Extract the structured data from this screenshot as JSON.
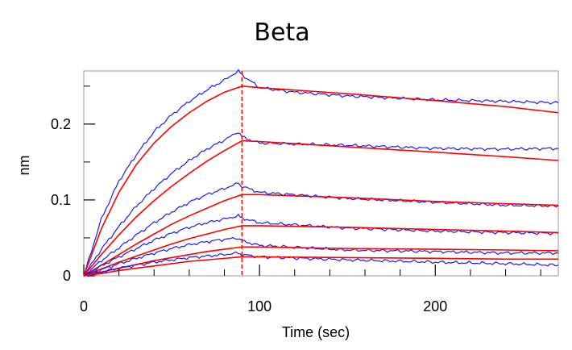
{
  "chart_data": {
    "type": "line",
    "title": "Beta",
    "xlabel": "Time (sec)",
    "ylabel": "nm",
    "xlim": [
      0,
      270
    ],
    "ylim": [
      0,
      0.27
    ],
    "x_ticks": [
      0,
      100,
      200
    ],
    "x_tick_labels": [
      "0",
      "100",
      "200"
    ],
    "y_ticks": [
      0,
      0.1,
      0.2
    ],
    "y_tick_labels": [
      "0",
      "0.1",
      "0.2"
    ],
    "association_end": 90,
    "grid": false,
    "colors": {
      "measured": "#1a1aff",
      "fit": "#ff0000",
      "marker": "#ff0000"
    },
    "series": [
      {
        "type": "measured",
        "points": [
          [
            0,
            0
          ],
          [
            10,
            0.075
          ],
          [
            20,
            0.125
          ],
          [
            30,
            0.16
          ],
          [
            40,
            0.19
          ],
          [
            50,
            0.212
          ],
          [
            60,
            0.23
          ],
          [
            70,
            0.245
          ],
          [
            80,
            0.258
          ],
          [
            88,
            0.27
          ],
          [
            90,
            0.265
          ],
          [
            100,
            0.248
          ],
          [
            120,
            0.242
          ],
          [
            150,
            0.237
          ],
          [
            200,
            0.232
          ],
          [
            240,
            0.23
          ],
          [
            270,
            0.228
          ]
        ]
      },
      {
        "type": "fit",
        "points": [
          [
            0,
            0
          ],
          [
            10,
            0.062
          ],
          [
            20,
            0.11
          ],
          [
            30,
            0.147
          ],
          [
            40,
            0.175
          ],
          [
            50,
            0.197
          ],
          [
            60,
            0.215
          ],
          [
            70,
            0.23
          ],
          [
            80,
            0.242
          ],
          [
            90,
            0.25
          ],
          [
            100,
            0.248
          ],
          [
            150,
            0.24
          ],
          [
            200,
            0.231
          ],
          [
            240,
            0.223
          ],
          [
            270,
            0.215
          ]
        ]
      },
      {
        "type": "measured",
        "points": [
          [
            0,
            0
          ],
          [
            10,
            0.035
          ],
          [
            20,
            0.065
          ],
          [
            30,
            0.092
          ],
          [
            40,
            0.115
          ],
          [
            50,
            0.135
          ],
          [
            60,
            0.152
          ],
          [
            70,
            0.167
          ],
          [
            80,
            0.179
          ],
          [
            88,
            0.19
          ],
          [
            90,
            0.183
          ],
          [
            100,
            0.175
          ],
          [
            150,
            0.172
          ],
          [
            200,
            0.168
          ],
          [
            240,
            0.167
          ],
          [
            270,
            0.168
          ]
        ]
      },
      {
        "type": "fit",
        "points": [
          [
            0,
            0
          ],
          [
            10,
            0.028
          ],
          [
            20,
            0.054
          ],
          [
            30,
            0.078
          ],
          [
            40,
            0.099
          ],
          [
            50,
            0.118
          ],
          [
            60,
            0.135
          ],
          [
            70,
            0.151
          ],
          [
            80,
            0.165
          ],
          [
            90,
            0.178
          ],
          [
            100,
            0.177
          ],
          [
            150,
            0.17
          ],
          [
            200,
            0.163
          ],
          [
            240,
            0.157
          ],
          [
            270,
            0.152
          ]
        ]
      },
      {
        "type": "measured",
        "points": [
          [
            0,
            0
          ],
          [
            10,
            0.02
          ],
          [
            20,
            0.037
          ],
          [
            30,
            0.054
          ],
          [
            40,
            0.07
          ],
          [
            50,
            0.084
          ],
          [
            60,
            0.097
          ],
          [
            70,
            0.107
          ],
          [
            80,
            0.115
          ],
          [
            88,
            0.122
          ],
          [
            90,
            0.118
          ],
          [
            100,
            0.11
          ],
          [
            150,
            0.102
          ],
          [
            200,
            0.097
          ],
          [
            240,
            0.093
          ],
          [
            270,
            0.092
          ]
        ]
      },
      {
        "type": "fit",
        "points": [
          [
            0,
            0
          ],
          [
            10,
            0.014
          ],
          [
            20,
            0.028
          ],
          [
            30,
            0.042
          ],
          [
            40,
            0.055
          ],
          [
            50,
            0.068
          ],
          [
            60,
            0.079
          ],
          [
            70,
            0.089
          ],
          [
            80,
            0.099
          ],
          [
            90,
            0.107
          ],
          [
            100,
            0.107
          ],
          [
            150,
            0.103
          ],
          [
            200,
            0.098
          ],
          [
            240,
            0.095
          ],
          [
            270,
            0.093
          ]
        ]
      },
      {
        "type": "measured",
        "points": [
          [
            0,
            0
          ],
          [
            10,
            0.013
          ],
          [
            20,
            0.025
          ],
          [
            30,
            0.036
          ],
          [
            40,
            0.047
          ],
          [
            50,
            0.056
          ],
          [
            60,
            0.064
          ],
          [
            70,
            0.07
          ],
          [
            80,
            0.075
          ],
          [
            88,
            0.079
          ],
          [
            90,
            0.076
          ],
          [
            100,
            0.07
          ],
          [
            150,
            0.063
          ],
          [
            200,
            0.059
          ],
          [
            240,
            0.057
          ],
          [
            270,
            0.056
          ]
        ]
      },
      {
        "type": "fit",
        "points": [
          [
            0,
            0
          ],
          [
            10,
            0.009
          ],
          [
            20,
            0.018
          ],
          [
            30,
            0.026
          ],
          [
            40,
            0.034
          ],
          [
            50,
            0.042
          ],
          [
            60,
            0.049
          ],
          [
            70,
            0.055
          ],
          [
            80,
            0.061
          ],
          [
            90,
            0.066
          ],
          [
            100,
            0.066
          ],
          [
            150,
            0.064
          ],
          [
            200,
            0.061
          ],
          [
            240,
            0.059
          ],
          [
            270,
            0.057
          ]
        ]
      },
      {
        "type": "measured",
        "points": [
          [
            0,
            0
          ],
          [
            10,
            0.008
          ],
          [
            20,
            0.016
          ],
          [
            30,
            0.023
          ],
          [
            40,
            0.03
          ],
          [
            50,
            0.036
          ],
          [
            60,
            0.041
          ],
          [
            70,
            0.045
          ],
          [
            80,
            0.048
          ],
          [
            88,
            0.05
          ],
          [
            90,
            0.046
          ],
          [
            100,
            0.04
          ],
          [
            150,
            0.034
          ],
          [
            200,
            0.032
          ],
          [
            240,
            0.03
          ],
          [
            270,
            0.03
          ]
        ]
      },
      {
        "type": "fit",
        "points": [
          [
            0,
            0
          ],
          [
            10,
            0.005
          ],
          [
            20,
            0.01
          ],
          [
            30,
            0.015
          ],
          [
            40,
            0.02
          ],
          [
            50,
            0.024
          ],
          [
            60,
            0.028
          ],
          [
            70,
            0.032
          ],
          [
            80,
            0.035
          ],
          [
            90,
            0.038
          ],
          [
            100,
            0.038
          ],
          [
            150,
            0.036
          ],
          [
            200,
            0.035
          ],
          [
            240,
            0.034
          ],
          [
            270,
            0.033
          ]
        ]
      },
      {
        "type": "measured",
        "points": [
          [
            0,
            0
          ],
          [
            10,
            0.005
          ],
          [
            20,
            0.01
          ],
          [
            30,
            0.014
          ],
          [
            40,
            0.018
          ],
          [
            50,
            0.021
          ],
          [
            60,
            0.024
          ],
          [
            70,
            0.026
          ],
          [
            80,
            0.028
          ],
          [
            88,
            0.03
          ],
          [
            90,
            0.028
          ],
          [
            100,
            0.025
          ],
          [
            150,
            0.021
          ],
          [
            200,
            0.018
          ],
          [
            240,
            0.016
          ],
          [
            270,
            0.014
          ]
        ]
      },
      {
        "type": "fit",
        "points": [
          [
            0,
            0
          ],
          [
            10,
            0.003
          ],
          [
            20,
            0.007
          ],
          [
            30,
            0.01
          ],
          [
            40,
            0.013
          ],
          [
            50,
            0.016
          ],
          [
            60,
            0.019
          ],
          [
            70,
            0.021
          ],
          [
            80,
            0.023
          ],
          [
            90,
            0.025
          ],
          [
            100,
            0.025
          ],
          [
            150,
            0.024
          ],
          [
            200,
            0.023
          ],
          [
            240,
            0.022
          ],
          [
            270,
            0.022
          ]
        ]
      }
    ]
  }
}
